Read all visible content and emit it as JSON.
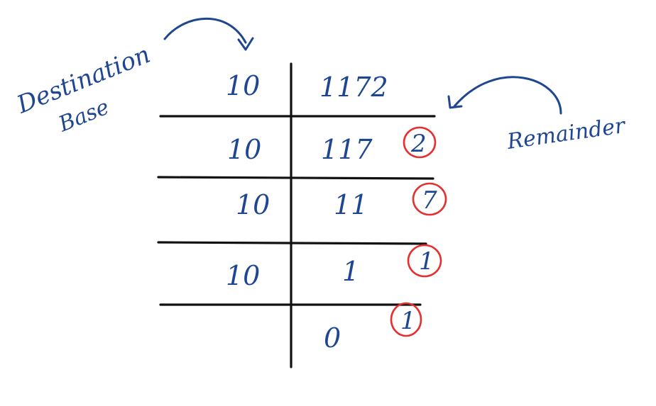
{
  "annotations": {
    "left_label_line1": "Destination",
    "left_label_line2": "Base",
    "right_label": "Remainder"
  },
  "division_steps": [
    {
      "divisor": "10",
      "dividend": "1172",
      "remainder": ""
    },
    {
      "divisor": "10",
      "dividend": "117",
      "remainder": "2"
    },
    {
      "divisor": "10",
      "dividend": "11",
      "remainder": "7"
    },
    {
      "divisor": "10",
      "dividend": "1",
      "remainder": "1"
    },
    {
      "divisor": "",
      "dividend": "0",
      "remainder": "1"
    }
  ],
  "colors": {
    "ink": "#1f4690",
    "lines": "#111111",
    "remainder_circles": "#e53030"
  }
}
